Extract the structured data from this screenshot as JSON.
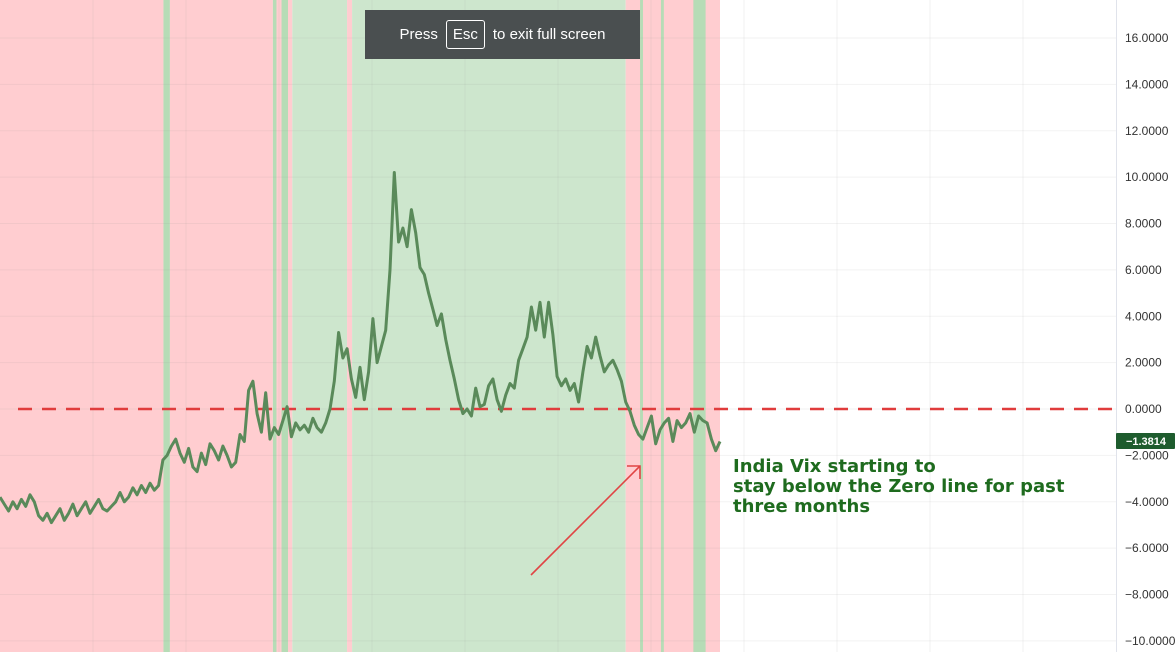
{
  "fullscreen_notice": {
    "prefix": "Press",
    "key": "Esc",
    "suffix": "to exit full screen"
  },
  "colors": {
    "bearish_background": "#ffcdd0",
    "bullish_background": "#cde6cd",
    "bullish_edge": "#b6dcb6",
    "line": "#5a8a5a",
    "zero_line": "#e03c3c",
    "annotation_text": "#1e6b1e",
    "arrow": "#e04444",
    "last_value_badge": "#1e5c2e"
  },
  "annotation": {
    "lines": [
      "India Vix starting to",
      "stay below the Zero line for past",
      "three months"
    ]
  },
  "chart_data": {
    "type": "line",
    "title": "",
    "xlabel": "",
    "ylabel": "",
    "ylim": [
      -10.5,
      17.5
    ],
    "y_ticks": [
      16,
      14,
      12,
      10,
      8,
      6,
      4,
      2,
      0,
      -2,
      -4,
      -6,
      -8,
      -10
    ],
    "y_tick_labels": [
      "16.0000",
      "14.0000",
      "12.0000",
      "10.0000",
      "8.0000",
      "6.0000",
      "4.0000",
      "2.0000",
      "0.0000",
      "−2.0000",
      "−4.0000",
      "−6.0000",
      "−8.0000",
      "−10.0000"
    ],
    "reference_line": {
      "y": 0,
      "style": "dashed"
    },
    "last_value": -1.3814,
    "last_value_label": "−1.3814",
    "grid": true,
    "series": [
      {
        "values": [
          -3.8,
          -4.1,
          -4.4,
          -4.0,
          -4.3,
          -3.9,
          -4.2,
          -3.7,
          -4.0,
          -4.6,
          -4.8,
          -4.5,
          -4.9,
          -4.6,
          -4.3,
          -4.8,
          -4.5,
          -4.1,
          -4.6,
          -4.3,
          -4.0,
          -4.5,
          -4.2,
          -3.9,
          -4.3,
          -4.4,
          -4.2,
          -4.0,
          -3.6,
          -4.0,
          -3.8,
          -3.4,
          -3.7,
          -3.3,
          -3.6,
          -3.2,
          -3.5,
          -3.3,
          -2.2,
          -2.0,
          -1.6,
          -1.3,
          -1.9,
          -2.3,
          -1.7,
          -2.5,
          -2.7,
          -1.9,
          -2.4,
          -1.5,
          -1.8,
          -2.2,
          -1.6,
          -2.0,
          -2.5,
          -2.3,
          -1.1,
          -1.4,
          0.8,
          1.2,
          -0.2,
          -1.0,
          0.7,
          -1.3,
          -0.8,
          -1.1,
          -0.5,
          0.1,
          -1.2,
          -0.6,
          -0.9,
          -0.7,
          -1.0,
          -0.4,
          -0.8,
          -1.0,
          -0.6,
          0.0,
          1.2,
          3.3,
          2.2,
          2.6,
          1.3,
          0.5,
          1.8,
          0.4,
          1.6,
          3.9,
          2.0,
          2.7,
          3.4,
          6.0,
          10.2,
          7.2,
          7.8,
          7.0,
          8.6,
          7.6,
          6.1,
          5.8,
          5.0,
          4.3,
          3.6,
          4.1,
          3.0,
          2.1,
          1.3,
          0.4,
          -0.2,
          0.0,
          -0.3,
          0.9,
          0.1,
          0.2,
          1.0,
          1.3,
          0.4,
          -0.1,
          0.6,
          1.1,
          0.9,
          2.1,
          2.6,
          3.1,
          4.4,
          3.4,
          4.6,
          3.1,
          4.6,
          3.2,
          1.4,
          1.0,
          1.3,
          0.8,
          1.1,
          0.3,
          1.6,
          2.7,
          2.2,
          3.1,
          2.3,
          1.6,
          1.9,
          2.1,
          1.7,
          1.2,
          0.3,
          -0.1,
          -0.7,
          -1.1,
          -1.3,
          -0.8,
          -0.3,
          -1.5,
          -0.9,
          -0.6,
          -0.4,
          -1.4,
          -0.5,
          -0.8,
          -0.6,
          -0.2,
          -1.0,
          -0.3,
          -0.5,
          -0.6,
          -1.3,
          -1.8,
          -1.4
        ]
      }
    ],
    "regime_bands": [
      {
        "start": 0.0,
        "end": 0.227,
        "regime": "bearish"
      },
      {
        "start": 0.227,
        "end": 0.236,
        "regime": "bullish"
      },
      {
        "start": 0.236,
        "end": 0.379,
        "regime": "bearish"
      },
      {
        "start": 0.379,
        "end": 0.384,
        "regime": "bullish"
      },
      {
        "start": 0.384,
        "end": 0.391,
        "regime": "bearish"
      },
      {
        "start": 0.391,
        "end": 0.4,
        "regime": "bullish"
      },
      {
        "start": 0.4,
        "end": 0.406,
        "regime": "bearish"
      },
      {
        "start": 0.406,
        "end": 0.482,
        "regime": "bullish"
      },
      {
        "start": 0.482,
        "end": 0.489,
        "regime": "bearish"
      },
      {
        "start": 0.489,
        "end": 0.869,
        "regime": "bullish"
      },
      {
        "start": 0.869,
        "end": 1.0,
        "regime": "bearish"
      },
      {
        "start": 0.889,
        "end": 0.893,
        "regime": "bullish"
      },
      {
        "start": 0.918,
        "end": 0.922,
        "regime": "bullish"
      },
      {
        "start": 0.963,
        "end": 0.98,
        "regime": "bullish"
      }
    ]
  }
}
